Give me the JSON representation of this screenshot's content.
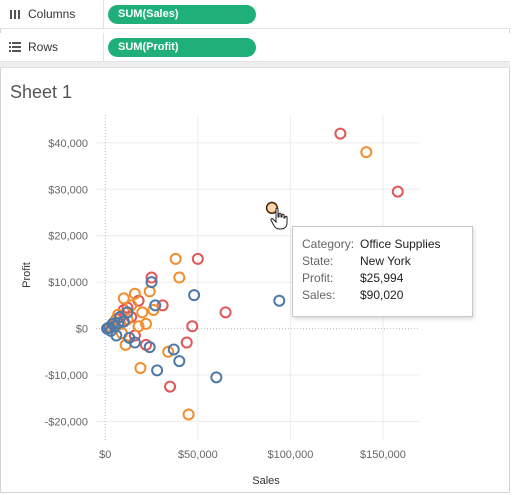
{
  "shelves": {
    "columns": {
      "label": "Columns",
      "pill": "SUM(Sales)"
    },
    "rows": {
      "label": "Rows",
      "pill": "SUM(Profit)"
    }
  },
  "sheet": {
    "title": "Sheet 1"
  },
  "colors": {
    "pill": "#1fb079",
    "technology": "#e15759",
    "office_supplies": "#f28e2b",
    "furniture": "#4e79a7"
  },
  "tooltip": {
    "category_label": "Category:",
    "category_value": "Office Supplies",
    "state_label": "State:",
    "state_value": "New York",
    "profit_label": "Profit:",
    "profit_value": "$25,994",
    "sales_label": "Sales:",
    "sales_value": "$90,020"
  },
  "chart_data": {
    "type": "scatter",
    "title": "",
    "xlabel": "Sales",
    "ylabel": "Profit",
    "xlim": [
      -5000,
      170000
    ],
    "ylim": [
      -24000,
      46000
    ],
    "x_ticks": [
      0,
      50000,
      100000,
      150000
    ],
    "x_tick_labels": [
      "$0",
      "$50,000",
      "$100,000",
      "$150,000"
    ],
    "y_ticks": [
      -20000,
      -10000,
      0,
      10000,
      20000,
      30000,
      40000
    ],
    "y_tick_labels": [
      "-$20,000",
      "-$10,000",
      "$0",
      "$10,000",
      "$20,000",
      "$30,000",
      "$40,000"
    ],
    "grid": true,
    "series": [
      {
        "color": "#e15759",
        "points": [
          [
            127000,
            42000
          ],
          [
            158000,
            29500
          ],
          [
            50000,
            15000
          ],
          [
            65000,
            3500
          ],
          [
            25000,
            11000
          ],
          [
            31000,
            5000
          ],
          [
            47000,
            500
          ],
          [
            44000,
            -3000
          ],
          [
            35000,
            -12500
          ],
          [
            22000,
            -3500
          ],
          [
            14000,
            2500
          ],
          [
            18000,
            6000
          ],
          [
            10000,
            4000
          ],
          [
            6000,
            2000
          ],
          [
            16000,
            -1500
          ],
          [
            8000,
            1000
          ],
          [
            12000,
            4500
          ]
        ]
      },
      {
        "color": "#f28e2b",
        "points": [
          [
            141000,
            38000
          ],
          [
            90020,
            25994
          ],
          [
            38000,
            15000
          ],
          [
            40000,
            11000
          ],
          [
            34000,
            -5000
          ],
          [
            45000,
            -18500
          ],
          [
            19000,
            -8500
          ],
          [
            22000,
            1000
          ],
          [
            16000,
            7500
          ],
          [
            24000,
            8000
          ],
          [
            20000,
            3500
          ],
          [
            14000,
            5000
          ],
          [
            12000,
            2000
          ],
          [
            9000,
            -1000
          ],
          [
            11000,
            -3500
          ],
          [
            18000,
            500
          ],
          [
            7000,
            3000
          ],
          [
            5000,
            1500
          ],
          [
            10000,
            6500
          ],
          [
            26000,
            4000
          ],
          [
            3000,
            500
          ]
        ]
      },
      {
        "color": "#4e79a7",
        "points": [
          [
            94000,
            6000
          ],
          [
            48000,
            7200
          ],
          [
            60000,
            -10500
          ],
          [
            40000,
            -7000
          ],
          [
            28000,
            -9000
          ],
          [
            37000,
            -4500
          ],
          [
            24000,
            -4000
          ],
          [
            16000,
            -3000
          ],
          [
            13000,
            -2000
          ],
          [
            27000,
            5000
          ],
          [
            25000,
            10000
          ],
          [
            6000,
            -1500
          ],
          [
            8000,
            2500
          ],
          [
            4000,
            1000
          ],
          [
            2000,
            200
          ],
          [
            10000,
            1500
          ],
          [
            3000,
            -500
          ],
          [
            5000,
            500
          ],
          [
            1000,
            0
          ],
          [
            12000,
            3500
          ],
          [
            7000,
            1200
          ]
        ]
      }
    ]
  }
}
